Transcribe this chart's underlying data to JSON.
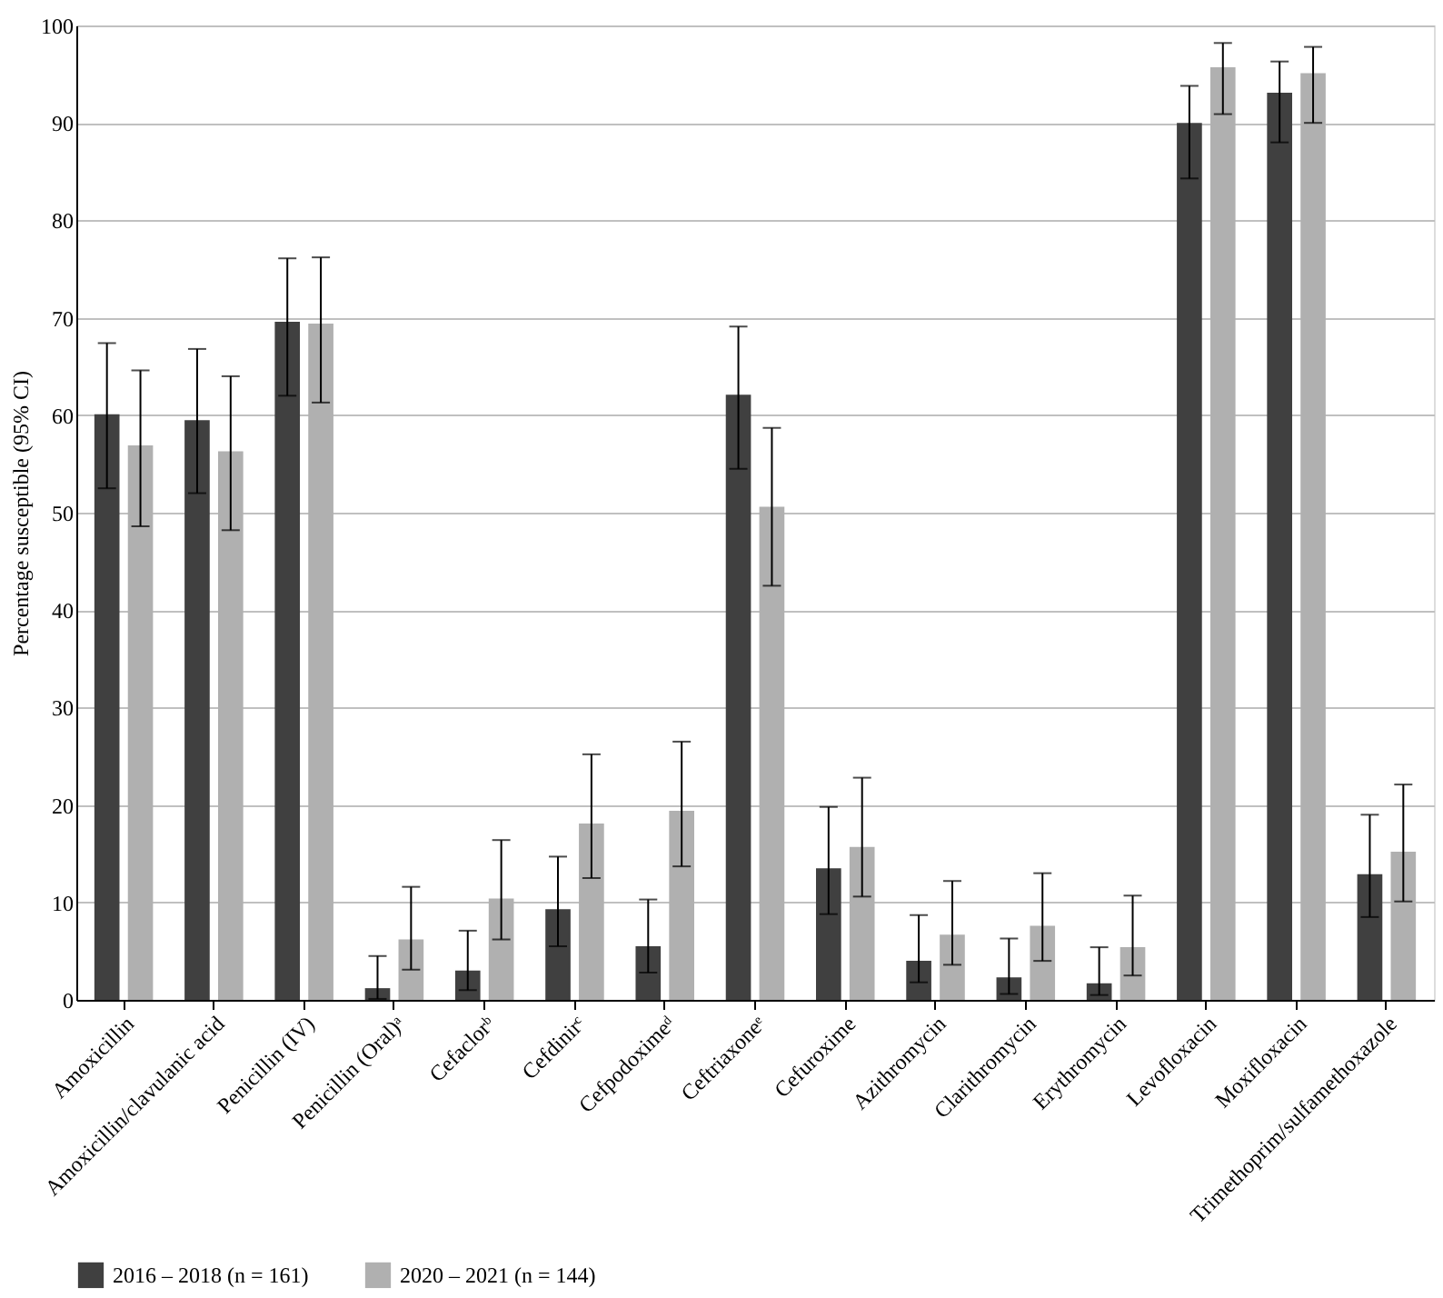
{
  "chart_data": {
    "type": "bar",
    "ylabel": "Percentage susceptible (95% CI)",
    "categories": [
      "Amoxicillin",
      "Amoxicillin/clavulanic acid",
      "Penicillin (IV)",
      "Penicillin (Oral)ᵃ",
      "Cefaclorᵇ",
      "Cefdinirᶜ",
      "Cefpodoximeᵈ",
      "Ceftriaxoneᵉ",
      "Cefuroxime",
      "Azithromycin",
      "Clarithromycin",
      "Erythromycin",
      "Levofloxacin",
      "Moxifloxacin",
      "Trimethoprim/sulfamethoxazole"
    ],
    "series": [
      {
        "name": "2016 – 2018 (n = 161)",
        "color": "#404040",
        "values": [
          60.1,
          59.5,
          69.6,
          1.2,
          3.0,
          9.3,
          5.5,
          62.1,
          13.5,
          4.0,
          2.3,
          1.7,
          90.0,
          93.1,
          12.9
        ],
        "errors": [
          [
            52.5,
            67.4
          ],
          [
            52.0,
            66.8
          ],
          [
            62.0,
            76.1
          ],
          [
            0.1,
            4.5
          ],
          [
            1.0,
            7.1
          ],
          [
            5.5,
            14.7
          ],
          [
            2.8,
            10.3
          ],
          [
            54.5,
            69.1
          ],
          [
            8.8,
            19.8
          ],
          [
            1.8,
            8.7
          ],
          [
            0.6,
            6.3
          ],
          [
            0.5,
            5.4
          ],
          [
            84.3,
            93.8
          ],
          [
            88.0,
            96.3
          ],
          [
            8.5,
            19.0
          ]
        ]
      },
      {
        "name": "2020 – 2021 (n = 144)",
        "color": "#b0b0b0",
        "values": [
          56.9,
          56.3,
          69.4,
          6.2,
          10.4,
          18.1,
          19.4,
          50.6,
          15.7,
          6.7,
          7.6,
          5.4,
          95.7,
          95.1,
          15.2
        ],
        "errors": [
          [
            48.6,
            64.6
          ],
          [
            48.2,
            64.0
          ],
          [
            61.3,
            76.2
          ],
          [
            3.1,
            11.6
          ],
          [
            6.2,
            16.4
          ],
          [
            12.5,
            25.2
          ],
          [
            13.7,
            26.5
          ],
          [
            42.5,
            58.7
          ],
          [
            10.6,
            22.8
          ],
          [
            3.6,
            12.2
          ],
          [
            4.0,
            13.0
          ],
          [
            2.5,
            10.7
          ],
          [
            90.9,
            98.2
          ],
          [
            90.0,
            97.8
          ],
          [
            10.1,
            22.1
          ]
        ]
      }
    ],
    "ylim": [
      0,
      100
    ],
    "yticks": [
      0,
      10,
      20,
      30,
      40,
      50,
      60,
      70,
      80,
      90,
      100
    ],
    "grid": "y",
    "legend": "bottom"
  }
}
